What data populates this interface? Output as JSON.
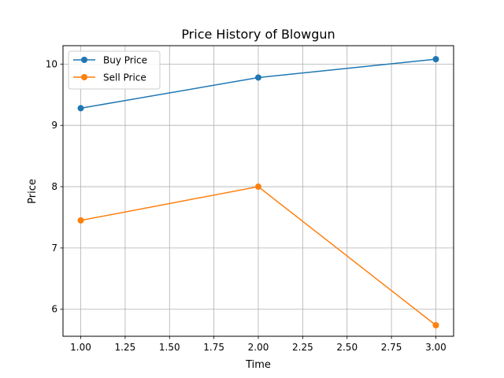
{
  "chart_data": {
    "type": "line",
    "title": "Price History of Blowgun",
    "xlabel": "Time",
    "ylabel": "Price",
    "x": [
      1.0,
      2.0,
      3.0
    ],
    "series": [
      {
        "name": "Buy Price",
        "values": [
          9.28,
          9.78,
          10.08
        ],
        "color": "#1f77b4"
      },
      {
        "name": "Sell Price",
        "values": [
          7.45,
          8.0,
          5.74
        ],
        "color": "#ff7f0e"
      }
    ],
    "xticks": [
      "1.00",
      "1.25",
      "1.50",
      "1.75",
      "2.00",
      "2.25",
      "2.50",
      "2.75",
      "3.00"
    ],
    "yticks": [
      "6",
      "7",
      "8",
      "9",
      "10"
    ],
    "xlim": [
      0.9,
      3.1
    ],
    "ylim": [
      5.56,
      10.3
    ],
    "grid": true,
    "legend_position": "top-left"
  }
}
